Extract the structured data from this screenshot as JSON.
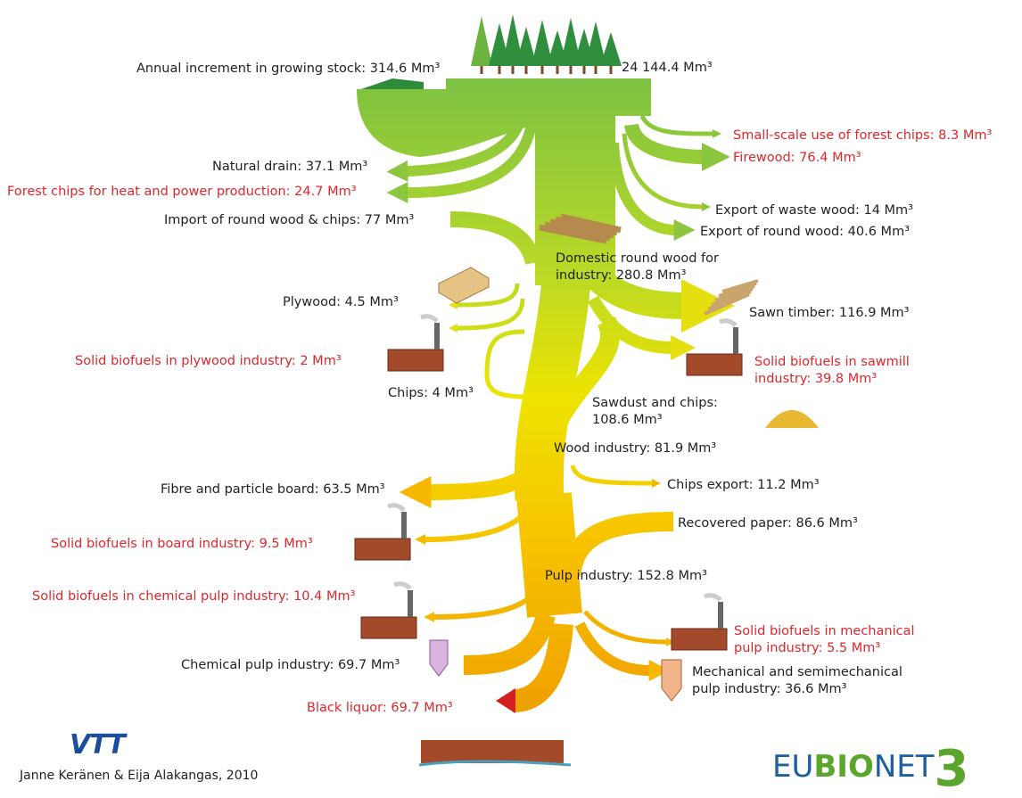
{
  "labels": [
    "Annual increment in growing stock: 314.6 Mm³",
    "24 144.4 Mm³",
    "Small-scale use of forest chips: 8.3 Mm³",
    "Firewood: 76.4 Mm³",
    "Natural drain: 37.1 Mm³",
    "Forest chips for heat and power production: 24.7 Mm³",
    "Import of round wood & chips: 77 Mm³",
    "Export of waste wood: 14 Mm³",
    "Export of round wood: 40.6 Mm³",
    "Domestic round wood for industry: 280.8 Mm³",
    "Plywood: 4.5 Mm³",
    "Sawn timber: 116.9 Mm³",
    "Solid biofuels in plywood industry: 2 Mm³",
    "Solid biofuels in sawmill industry: 39.8 Mm³",
    "Chips: 4 Mm³",
    "Sawdust and chips: 108.6 Mm³",
    "Wood industry: 81.9 Mm³",
    "Fibre and particle board: 63.5 Mm³",
    "Chips export: 11.2 Mm³",
    "Recovered paper: 86.6 Mm³",
    "Solid biofuels in board industry: 9.5 Mm³",
    "Pulp industry: 152.8 Mm³",
    "Solid biofuels in chemical pulp industry: 10.4 Mm³",
    "Solid biofuels in mechanical pulp industry: 5.5 Mm³",
    "Chemical pulp industry: 69.7 Mm³",
    "Mechanical and semimechanical pulp industry: 36.6 Mm³",
    "Black liquor: 69.7 Mm³"
  ],
  "footer": {
    "credit": "Janne Keränen & Eija Alakangas, 2010",
    "vtt_logo": "VTT",
    "eubionet_logo": [
      "EU",
      "BIO",
      "NET",
      "3"
    ]
  }
}
